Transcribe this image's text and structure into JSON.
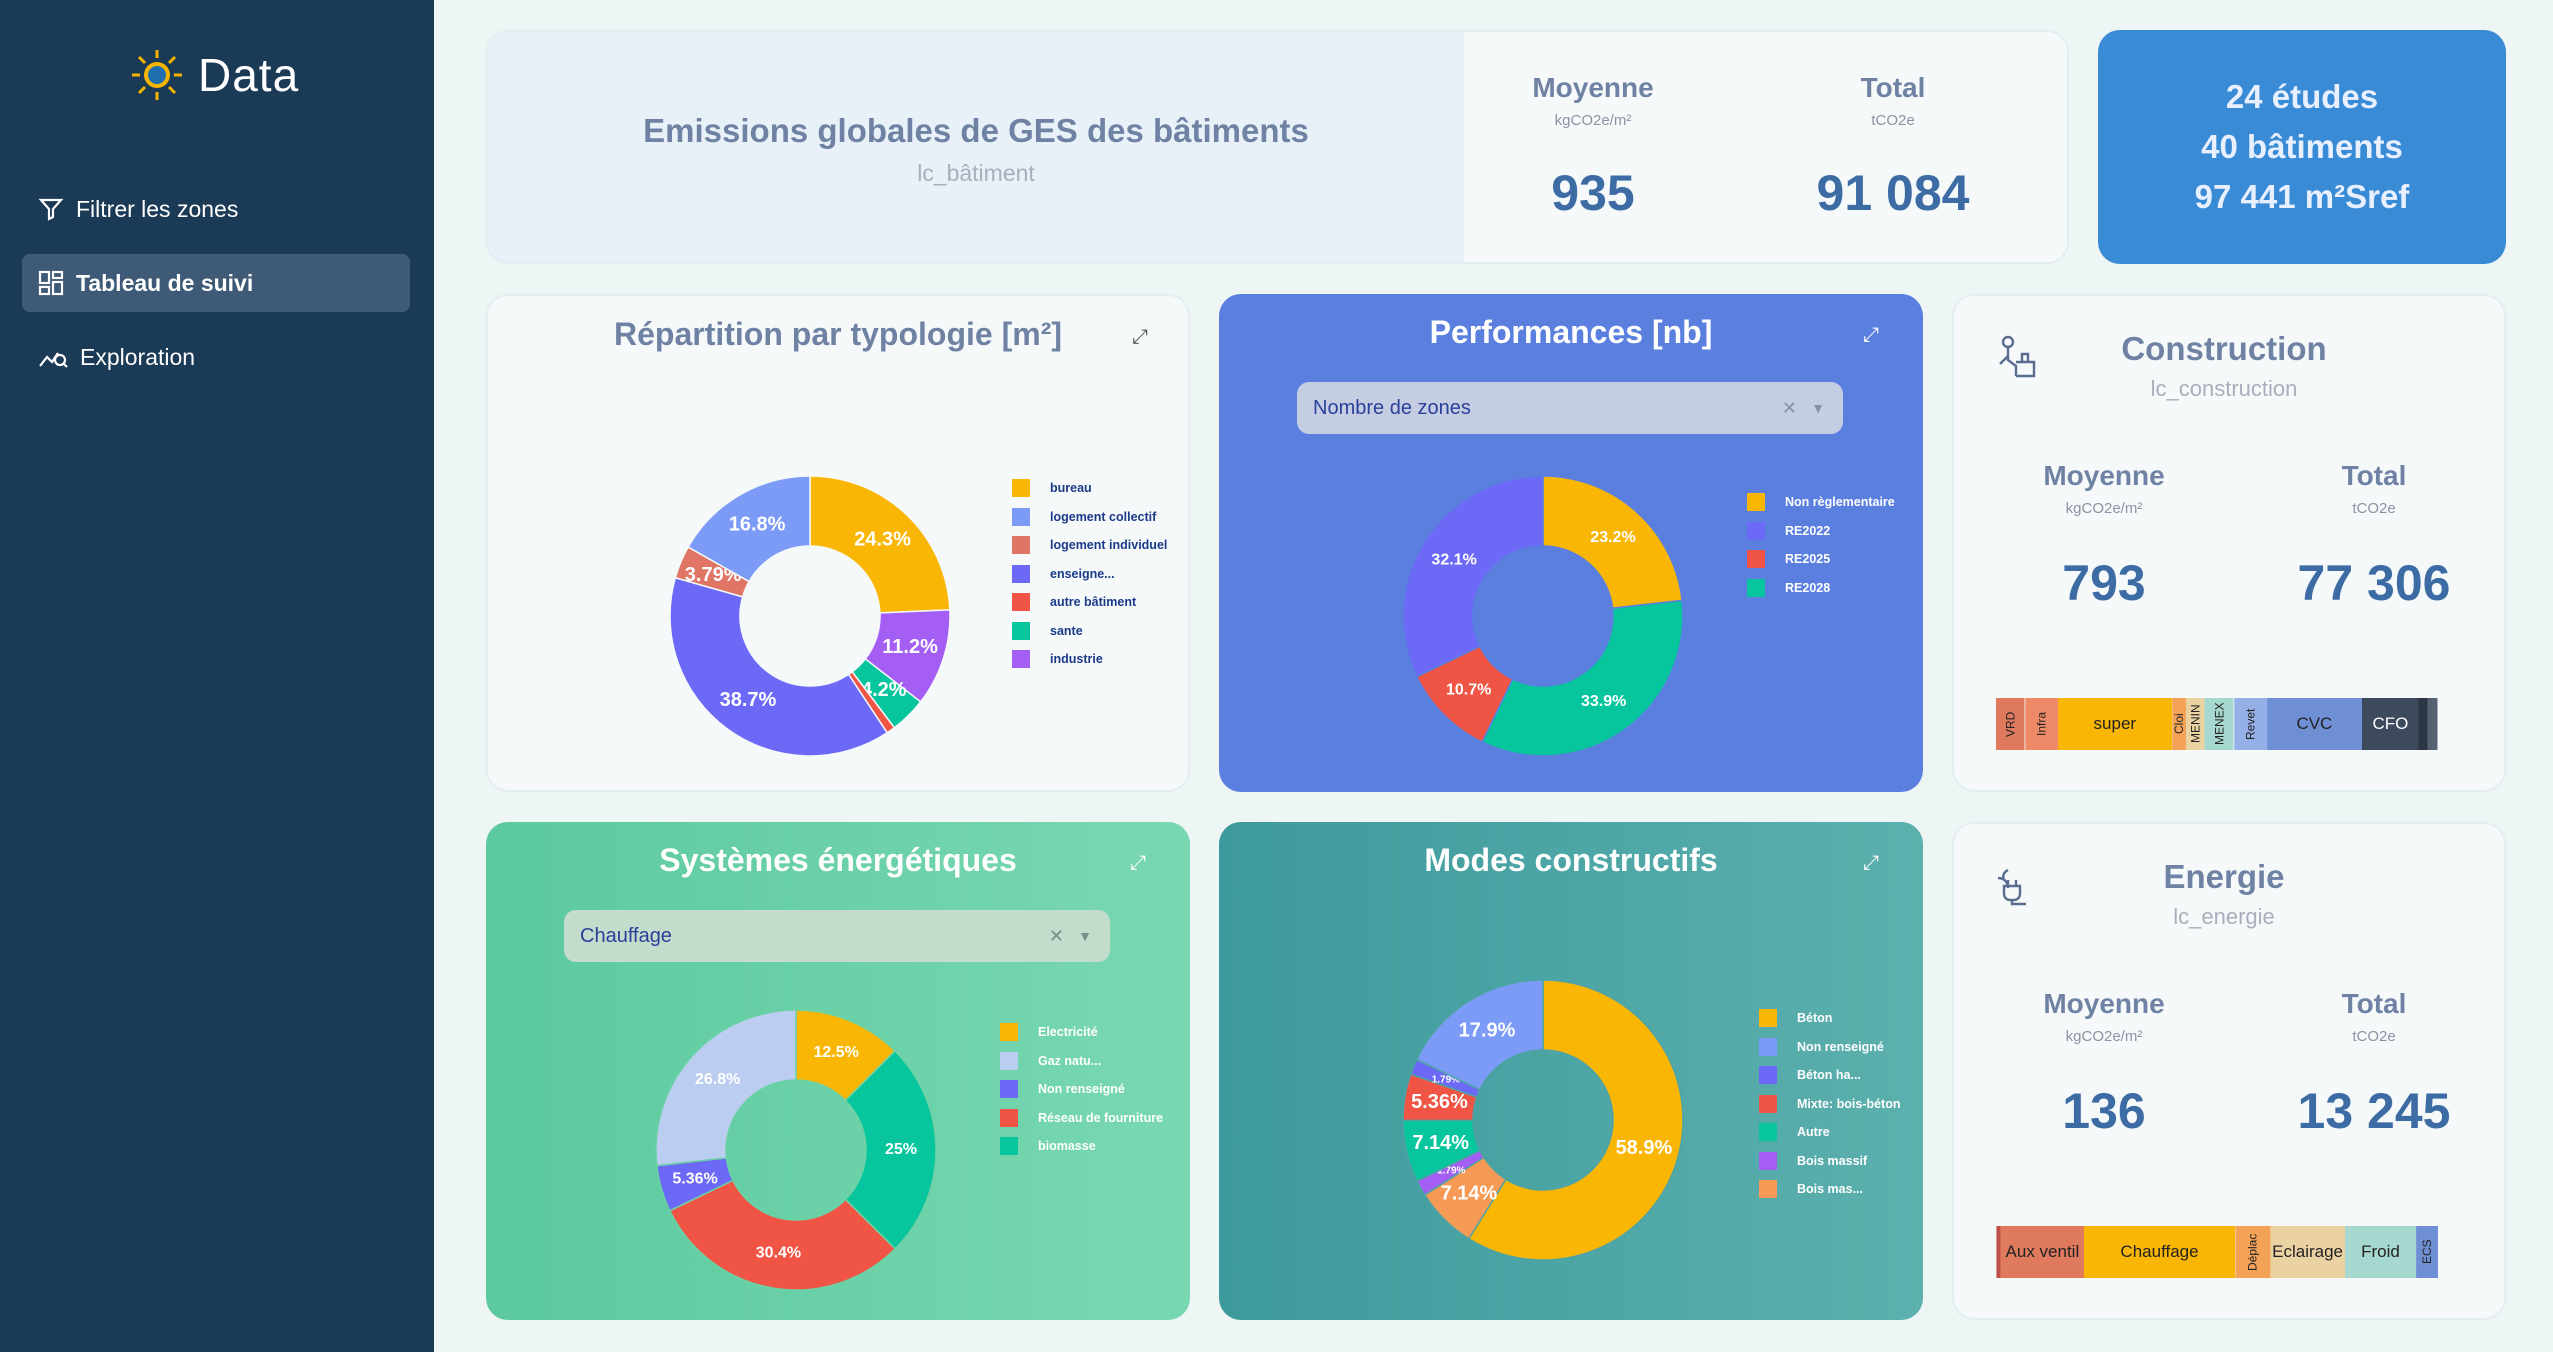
{
  "app": {
    "title": "Data"
  },
  "nav": [
    {
      "label": "Filtrer les zones"
    },
    {
      "label": "Tableau de suivi"
    },
    {
      "label": "Exploration"
    }
  ],
  "header": {
    "title": "Emissions globales de GES des bâtiments",
    "subtitle": "lc_bâtiment",
    "moyenne_label": "Moyenne",
    "moyenne_unit": "kgCO2e/m²",
    "moyenne_value": "935",
    "total_label": "Total",
    "total_unit": "tCO2e",
    "total_value": "91 084"
  },
  "summary": {
    "etudes": "24 études",
    "batiments": "40 bâtiments",
    "surface": "97 441 m²Sref"
  },
  "colors": {
    "sidebar": "#1b3a55",
    "accent": "#3a8bd6",
    "perf_bg": "#5a7fdf",
    "sys_bg": "#6cd2a5",
    "modes_bg": "#4da3a5"
  },
  "typologie": {
    "title": "Répartition par typologie [m²]",
    "slices": [
      {
        "label": "bureau",
        "value": 24.3,
        "text": "24.3%",
        "color": "#fab605"
      },
      {
        "label": "industrie",
        "value": 11.2,
        "text": "11.2%",
        "color": "#a45ef4"
      },
      {
        "label": "sante",
        "value": 4.2,
        "text": "4.2%",
        "color": "#07c59c"
      },
      {
        "label": "autre bâtiment",
        "value": 1.0,
        "text": "",
        "color": "#ef5444"
      },
      {
        "label": "enseigne...",
        "value": 38.7,
        "text": "38.7%",
        "color": "#6c69f7"
      },
      {
        "label": "logement individuel",
        "value": 3.79,
        "text": "3.79%",
        "color": "#e07565"
      },
      {
        "label": "logement collectif",
        "value": 16.8,
        "text": "16.8%",
        "color": "#7c9bf7"
      }
    ],
    "legend": [
      "bureau",
      "logement collectif",
      "logement individuel",
      "enseigne...",
      "autre bâtiment",
      "sante",
      "industrie"
    ]
  },
  "performances": {
    "title": "Performances [nb]",
    "select_value": "Nombre de zones",
    "slices": [
      {
        "label": "Non règlementaire",
        "value": 23.2,
        "text": "23.2%",
        "color": "#fab605"
      },
      {
        "label": "RE2028",
        "value": 33.9,
        "text": "33.9%",
        "color": "#07c59c"
      },
      {
        "label": "RE2025",
        "value": 10.7,
        "text": "10.7%",
        "color": "#ef5444"
      },
      {
        "label": "RE2022",
        "value": 32.1,
        "text": "32.1%",
        "color": "#6c69f7"
      }
    ],
    "legend": [
      "Non règlementaire",
      "RE2022",
      "RE2025",
      "RE2028"
    ]
  },
  "construction": {
    "title": "Construction",
    "subtitle": "lc_construction",
    "moyenne_label": "Moyenne",
    "moyenne_unit": "kgCO2e/m²",
    "moyenne_value": "793",
    "total_label": "Total",
    "total_unit": "tCO2e",
    "total_value": "77 306",
    "bar": [
      {
        "label": "VRD",
        "value": 6,
        "color": "#e07a5f",
        "vertical": true
      },
      {
        "label": "Infra",
        "value": 7,
        "color": "#ee8a68",
        "vertical": true
      },
      {
        "label": "super",
        "value": 24,
        "color": "#fab605",
        "vertical": false
      },
      {
        "label": "Cloi",
        "value": 3,
        "color": "#f3a258",
        "vertical": true
      },
      {
        "label": "MENIN",
        "value": 4,
        "color": "#ead2a3",
        "vertical": true
      },
      {
        "label": "MENEX",
        "value": 6,
        "color": "#a7d8cf",
        "vertical": true
      },
      {
        "label": "Revet",
        "value": 7,
        "color": "#94b0e6",
        "vertical": true
      },
      {
        "label": "CVC",
        "value": 20,
        "color": "#6f8fd4",
        "vertical": false
      },
      {
        "label": "CFO",
        "value": 12,
        "color": "#3d4a5e",
        "vertical": false
      },
      {
        "label": "",
        "value": 2,
        "color": "#2c3646",
        "vertical": true
      },
      {
        "label": "",
        "value": 2,
        "color": "#566173",
        "vertical": true
      }
    ]
  },
  "systemes": {
    "title": "Systèmes énergétiques",
    "select_value": "Chauffage",
    "slices": [
      {
        "label": "Electricité",
        "value": 12.5,
        "text": "12.5%",
        "color": "#fab605"
      },
      {
        "label": "biomasse",
        "value": 25,
        "text": "25%",
        "color": "#07c59c"
      },
      {
        "label": "Réseau de fourniture",
        "value": 30.4,
        "text": "30.4%",
        "color": "#ef5444"
      },
      {
        "label": "Non renseigné",
        "value": 5.36,
        "text": "5.36%",
        "color": "#6c69f7"
      },
      {
        "label": "Gaz natu...",
        "value": 26.8,
        "text": "26.8%",
        "color": "#bccdf2"
      }
    ],
    "legend": [
      "Electricité",
      "Gaz natu...",
      "Non renseigné",
      "Réseau de fourniture",
      "biomasse"
    ]
  },
  "modes": {
    "title": "Modes constructifs",
    "slices": [
      {
        "label": "Béton",
        "value": 58.9,
        "text": "58.9%",
        "color": "#fab605"
      },
      {
        "label": "Bois mas...",
        "value": 7.14,
        "text": "7.14%",
        "color": "#f79a55"
      },
      {
        "label": "Bois massif",
        "value": 1.79,
        "text": "1.79%",
        "color": "#a45ef4"
      },
      {
        "label": "Autre",
        "value": 7.14,
        "text": "7.14%",
        "color": "#07c59c"
      },
      {
        "label": "Mixte: bois-béton",
        "value": 5.36,
        "text": "5.36%",
        "color": "#ef5444"
      },
      {
        "label": "Béton ha...",
        "value": 1.79,
        "text": "1.79%",
        "color": "#6c69f7"
      },
      {
        "label": "Non renseigné",
        "value": 17.9,
        "text": "17.9%",
        "color": "#7c9bf7"
      }
    ],
    "legend": [
      "Béton",
      "Non renseigné",
      "Béton ha...",
      "Mixte: bois-béton",
      "Autre",
      "Bois massif",
      "Bois mas..."
    ]
  },
  "energie": {
    "title": "Energie",
    "subtitle": "lc_energie",
    "moyenne_label": "Moyenne",
    "moyenne_unit": "kgCO2e/m²",
    "moyenne_value": "136",
    "total_label": "Total",
    "total_unit": "tCO2e",
    "total_value": "13 245",
    "bar": [
      {
        "label": "",
        "value": 1,
        "color": "#c0504d",
        "vertical": true
      },
      {
        "label": "Aux ventil",
        "value": 19,
        "color": "#e07a5f",
        "vertical": false
      },
      {
        "label": "Chauffage",
        "value": 34,
        "color": "#fab605",
        "vertical": false
      },
      {
        "label": "Déplac",
        "value": 8,
        "color": "#f3a258",
        "vertical": true
      },
      {
        "label": "Eclairage",
        "value": 17,
        "color": "#ead2a3",
        "vertical": false
      },
      {
        "label": "Froid",
        "value": 16,
        "color": "#a7d8cf",
        "vertical": false
      },
      {
        "label": "ECS",
        "value": 5,
        "color": "#6f8fd4",
        "vertical": true
      }
    ]
  }
}
